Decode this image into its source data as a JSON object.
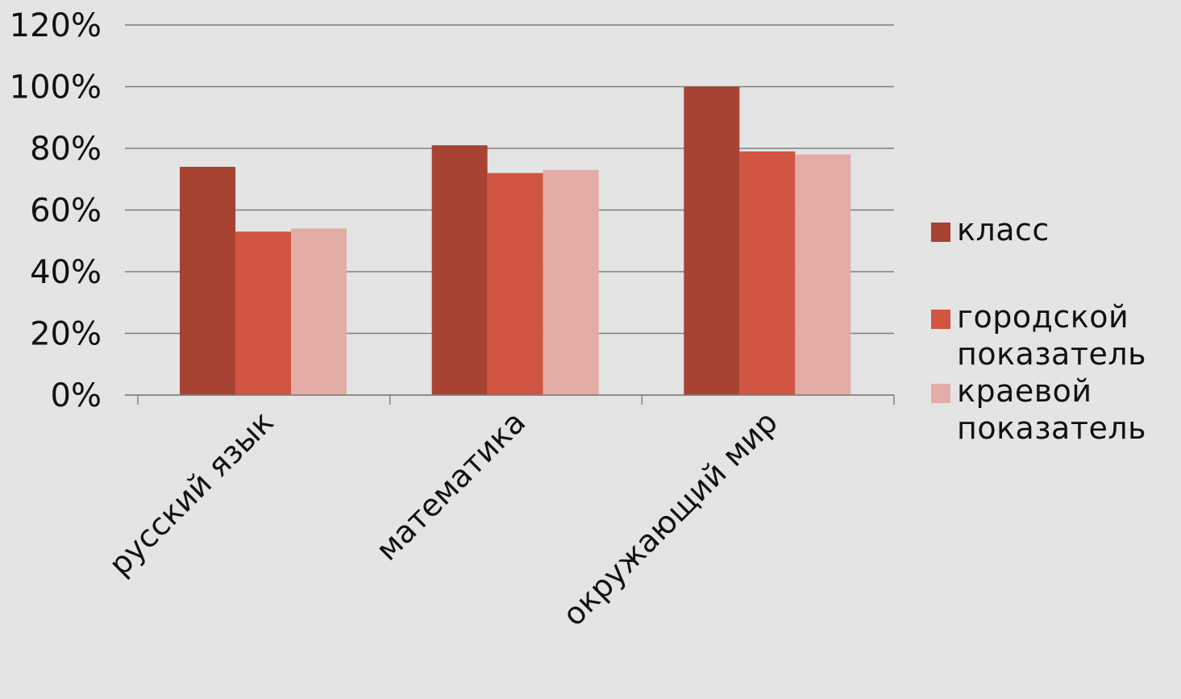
{
  "chart_data": {
    "type": "bar",
    "categories": [
      "русский язык",
      "математика",
      "окружающий мир"
    ],
    "series": [
      {
        "name": "класс",
        "values": [
          74,
          81,
          100
        ],
        "color": "#a84232"
      },
      {
        "name": "городской показатель",
        "values": [
          53,
          72,
          79
        ],
        "color": "#d05542"
      },
      {
        "name": "краевой показатель",
        "values": [
          54,
          73,
          78
        ],
        "color": "#e3aca6"
      }
    ],
    "y_ticks": [
      "0%",
      "20%",
      "40%",
      "60%",
      "80%",
      "100%",
      "120%"
    ],
    "ylim": [
      0,
      120
    ],
    "y_unit": "%",
    "grid": true,
    "legend_position": "right",
    "gridline_color": "#7f7f7f"
  }
}
